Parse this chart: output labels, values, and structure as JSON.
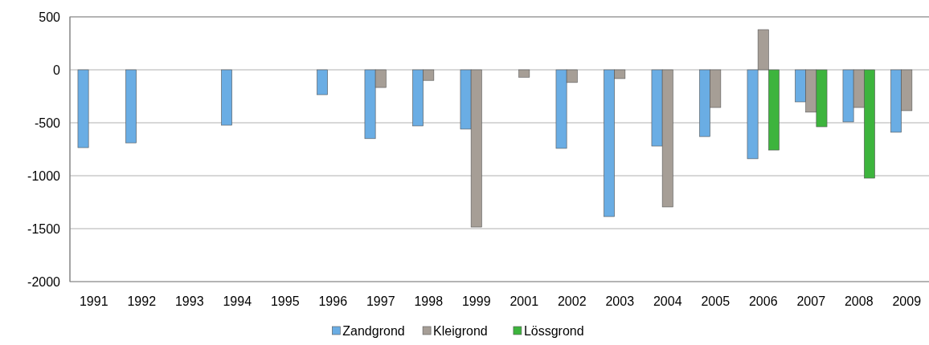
{
  "chart_data": {
    "type": "bar",
    "categories": [
      "1991",
      "1992",
      "1993",
      "1994",
      "1995",
      "1996",
      "1997",
      "1998",
      "1999",
      "2001",
      "2002",
      "2003",
      "2004",
      "2005",
      "2006",
      "2007",
      "2008",
      "2009"
    ],
    "series": [
      {
        "name": "Zandgrond",
        "color": "#6aade4",
        "values": [
          -735,
          -690,
          null,
          -523,
          null,
          -235,
          -650,
          -530,
          -560,
          null,
          -742,
          -1386,
          -720,
          -630,
          -840,
          -303,
          -492,
          -590
        ]
      },
      {
        "name": "Kleigrond",
        "color": "#a69e96",
        "values": [
          null,
          null,
          null,
          null,
          null,
          null,
          -167,
          -100,
          -1485,
          -70,
          -120,
          -83,
          -1295,
          -356,
          379,
          -400,
          -356,
          -386
        ]
      },
      {
        "name": "Lössgrond",
        "color": "#3db43d",
        "values": [
          null,
          null,
          null,
          null,
          null,
          null,
          null,
          null,
          null,
          null,
          null,
          null,
          null,
          null,
          -758,
          -538,
          -1023,
          null
        ]
      }
    ],
    "ylim": [
      -2000,
      500
    ],
    "yticks": [
      -2000,
      -1500,
      -1000,
      -500,
      0,
      500
    ],
    "grid": "y",
    "legend": "bottom"
  }
}
